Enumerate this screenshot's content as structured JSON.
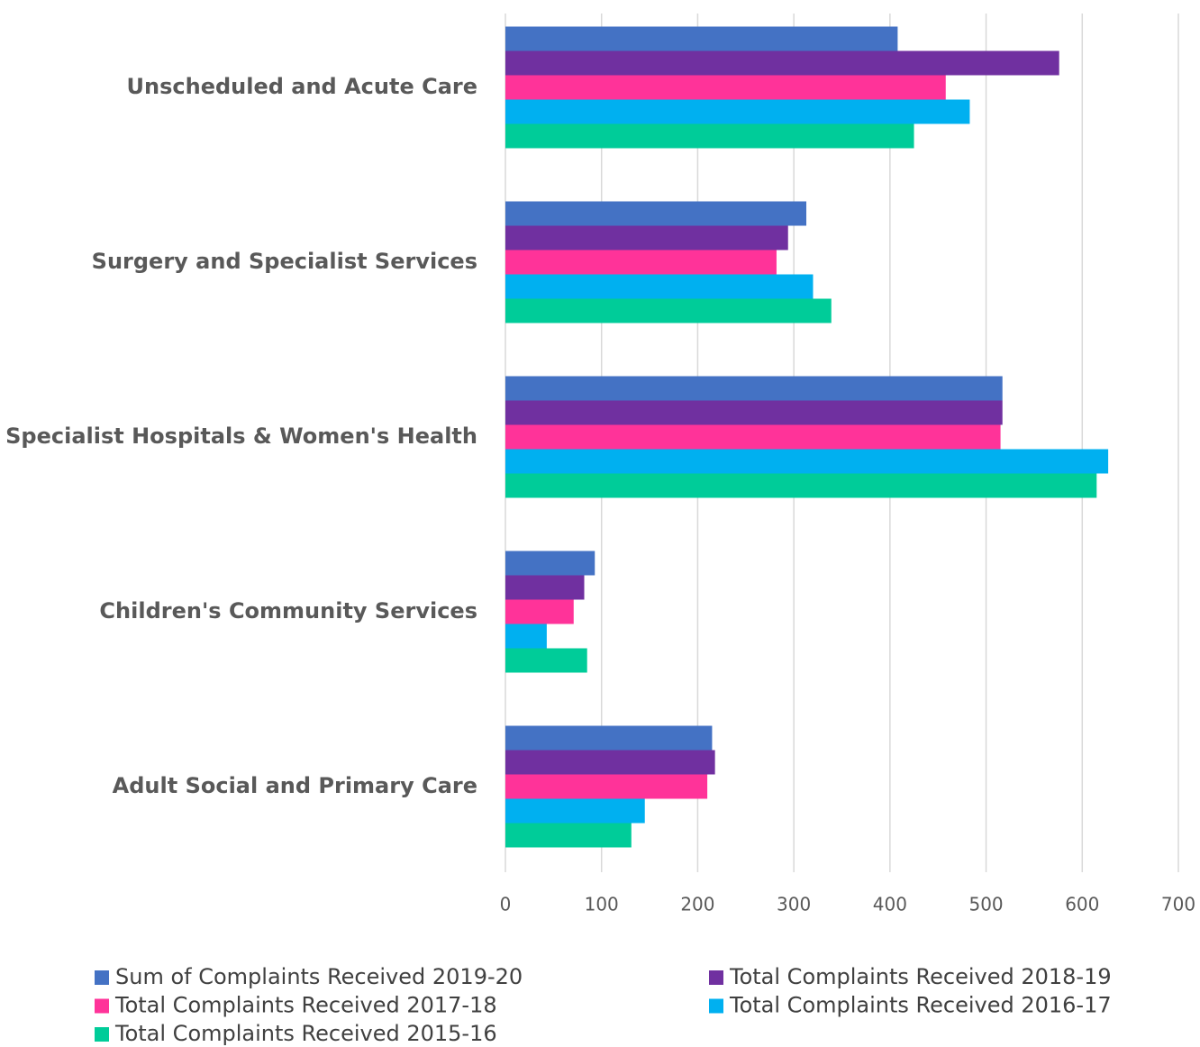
{
  "chart_data": {
    "type": "bar",
    "orientation": "horizontal",
    "categories": [
      "Unscheduled and Acute Care",
      "Surgery and Specialist Services",
      "Specialist Hospitals & Women's Health",
      "Children's Community Services",
      "Adult Social and Primary Care"
    ],
    "series": [
      {
        "name": "Sum of Complaints Received 2019-20",
        "color": "#4472c4",
        "values": [
          408,
          313,
          517,
          93,
          215
        ]
      },
      {
        "name": "Total Complaints Received 2018-19",
        "color": "#7030a0",
        "values": [
          576,
          294,
          517,
          82,
          218
        ]
      },
      {
        "name": "Total Complaints Received 2017-18",
        "color": "#ff3399",
        "values": [
          458,
          282,
          515,
          71,
          210
        ]
      },
      {
        "name": "Total Complaints Received 2016-17",
        "color": "#00b0f0",
        "values": [
          483,
          320,
          627,
          43,
          145
        ]
      },
      {
        "name": "Total Complaints Received 2015-16",
        "color": "#00cc99",
        "values": [
          425,
          339,
          615,
          85,
          131
        ]
      }
    ],
    "xlim": [
      0,
      700
    ],
    "xticks": [
      0,
      100,
      200,
      300,
      400,
      500,
      600,
      700
    ],
    "grid": true,
    "legend": "bottom"
  }
}
